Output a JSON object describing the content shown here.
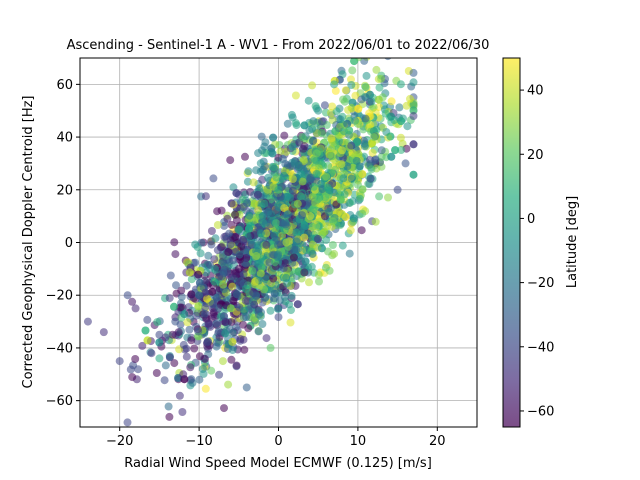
{
  "chart_data": {
    "type": "scatter",
    "title": "Ascending - Sentinel-1 A - WV1 - From 2022/06/01 to 2022/06/30",
    "xlabel": "Radial Wind Speed Model ECMWF (0.125) [m/s]",
    "ylabel": "Corrected Geophysical Doppler Centroid [Hz]",
    "xlim": [
      -25,
      25
    ],
    "ylim": [
      -70,
      70
    ],
    "xticks": [
      -20,
      -10,
      0,
      10,
      20
    ],
    "yticks": [
      -60,
      -40,
      -20,
      0,
      20,
      40,
      60
    ],
    "grid": true,
    "colormap": "viridis",
    "marker_alpha": 0.55,
    "colorbar": {
      "label": "Latitude [deg]",
      "range": [
        -65,
        50
      ],
      "ticks": [
        -60,
        -40,
        -20,
        0,
        20,
        40
      ]
    },
    "relationship": {
      "approx_slope_hz_per_ms": 3.0,
      "approx_intercept_hz": 5,
      "spread_hz": 14
    },
    "sample_points": [
      {
        "x": -24,
        "y": -30,
        "lat": -45
      },
      {
        "x": -22,
        "y": -34,
        "lat": -50
      },
      {
        "x": -20,
        "y": -45,
        "lat": -42
      },
      {
        "x": -19,
        "y": -20,
        "lat": -38
      },
      {
        "x": -18,
        "y": -25,
        "lat": -52
      },
      {
        "x": -16,
        "y": -42,
        "lat": -48
      },
      {
        "x": -15,
        "y": -35,
        "lat": -40
      },
      {
        "x": -13,
        "y": -30,
        "lat": -35
      },
      {
        "x": -12,
        "y": -50,
        "lat": -55
      },
      {
        "x": -10,
        "y": -20,
        "lat": -20
      },
      {
        "x": -9,
        "y": -38,
        "lat": -45
      },
      {
        "x": -8,
        "y": -10,
        "lat": -5
      },
      {
        "x": -7,
        "y": -45,
        "lat": 35
      },
      {
        "x": -6,
        "y": -25,
        "lat": 30
      },
      {
        "x": -5,
        "y": 5,
        "lat": 10
      },
      {
        "x": -4,
        "y": -55,
        "lat": -30
      },
      {
        "x": -3,
        "y": -15,
        "lat": 40
      },
      {
        "x": -2,
        "y": 10,
        "lat": -10
      },
      {
        "x": -1,
        "y": -40,
        "lat": 20
      },
      {
        "x": 0,
        "y": 20,
        "lat": 5
      },
      {
        "x": 1,
        "y": 0,
        "lat": 38
      },
      {
        "x": 2,
        "y": 30,
        "lat": -15
      },
      {
        "x": 3,
        "y": 40,
        "lat": 15
      },
      {
        "x": 4,
        "y": 10,
        "lat": 42
      },
      {
        "x": 5,
        "y": 50,
        "lat": -5
      },
      {
        "x": 6,
        "y": 25,
        "lat": 28
      },
      {
        "x": 7,
        "y": 60,
        "lat": 0
      },
      {
        "x": 8,
        "y": 35,
        "lat": 45
      },
      {
        "x": 9,
        "y": 15,
        "lat": 10
      },
      {
        "x": 10,
        "y": 45,
        "lat": 20
      },
      {
        "x": 11,
        "y": 55,
        "lat": -20
      },
      {
        "x": 12,
        "y": 40,
        "lat": 25
      },
      {
        "x": 13,
        "y": 35,
        "lat": -30
      },
      {
        "x": 15,
        "y": 20,
        "lat": -40
      },
      {
        "x": 16,
        "y": 30,
        "lat": -35
      },
      {
        "x": 17,
        "y": 48,
        "lat": -45
      }
    ]
  }
}
